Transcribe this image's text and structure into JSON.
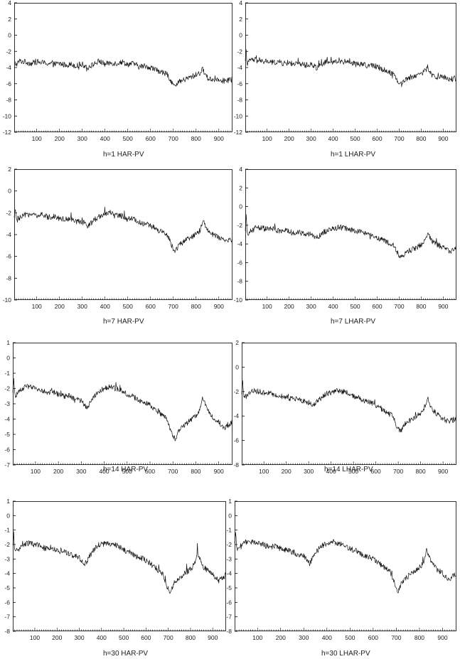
{
  "chart_data": [
    {
      "type": "line",
      "title": "h=1 HAR-PV",
      "xlim": [
        1,
        960
      ],
      "ylim": [
        -12,
        4
      ],
      "yticks": [
        4,
        2,
        0,
        -2,
        -4,
        -6,
        -8,
        -10,
        -12
      ],
      "xticks": [
        100,
        200,
        300,
        400,
        500,
        600,
        700,
        800,
        900
      ],
      "series": [
        {
          "x": [
            1,
            10,
            25,
            50,
            75,
            100,
            125,
            150,
            175,
            200,
            225,
            250,
            275,
            300,
            325,
            350,
            375,
            400,
            425,
            450,
            475,
            500,
            525,
            550,
            575,
            600,
            625,
            650,
            675,
            700,
            710,
            725,
            750,
            775,
            800,
            820,
            830,
            840,
            850,
            875,
            900,
            925,
            960
          ],
          "y": [
            -3.4,
            -3.6,
            -3.2,
            -3.3,
            -3.5,
            -3.3,
            -3.4,
            -3.5,
            -3.6,
            -3.5,
            -3.7,
            -3.6,
            -3.8,
            -3.6,
            -4.0,
            -3.6,
            -3.2,
            -3.6,
            -3.4,
            -3.5,
            -3.3,
            -3.6,
            -3.5,
            -3.9,
            -3.8,
            -4.0,
            -4.3,
            -4.6,
            -4.9,
            -6.1,
            -6.4,
            -5.8,
            -5.5,
            -5.2,
            -4.9,
            -4.6,
            -4.2,
            -4.8,
            -5.3,
            -5.5,
            -5.4,
            -5.7,
            -5.4
          ]
        }
      ]
    },
    {
      "type": "line",
      "title": "h=1 LHAR-PV",
      "xlim": [
        1,
        960
      ],
      "ylim": [
        -12,
        4
      ],
      "yticks": [
        4,
        2,
        0,
        -2,
        -4,
        -6,
        -8,
        -10,
        -12
      ],
      "xticks": [
        100,
        200,
        300,
        400,
        500,
        600,
        700,
        800,
        900
      ],
      "series": [
        {
          "x": [
            1,
            5,
            10,
            25,
            50,
            75,
            100,
            125,
            150,
            175,
            200,
            225,
            250,
            275,
            300,
            325,
            350,
            375,
            400,
            425,
            450,
            475,
            500,
            525,
            550,
            575,
            600,
            625,
            650,
            675,
            700,
            710,
            725,
            750,
            775,
            800,
            820,
            830,
            840,
            850,
            875,
            900,
            925,
            960
          ],
          "y": [
            -3.2,
            -2.0,
            -3.6,
            -3.0,
            -3.1,
            -3.3,
            -3.2,
            -3.4,
            -3.3,
            -3.5,
            -3.4,
            -3.6,
            -3.5,
            -3.7,
            -3.6,
            -4.0,
            -3.5,
            -3.3,
            -3.4,
            -3.1,
            -3.3,
            -3.2,
            -3.6,
            -3.5,
            -3.8,
            -3.7,
            -3.9,
            -4.2,
            -4.5,
            -4.8,
            -5.9,
            -6.1,
            -5.5,
            -5.2,
            -5.0,
            -4.7,
            -4.4,
            -3.9,
            -4.6,
            -5.0,
            -5.2,
            -5.1,
            -5.5,
            -5.3
          ]
        }
      ]
    },
    {
      "type": "line",
      "title": "h=7 HAR-PV",
      "xlim": [
        1,
        960
      ],
      "ylim": [
        -10,
        2
      ],
      "yticks": [
        2,
        0,
        -2,
        -4,
        -6,
        -8,
        -10
      ],
      "xticks": [
        100,
        200,
        300,
        400,
        500,
        600,
        700,
        800,
        900
      ],
      "series": [
        {
          "x": [
            1,
            5,
            10,
            25,
            50,
            75,
            100,
            125,
            150,
            175,
            200,
            225,
            250,
            275,
            300,
            325,
            350,
            375,
            400,
            425,
            450,
            475,
            500,
            525,
            550,
            575,
            600,
            625,
            650,
            675,
            700,
            710,
            725,
            750,
            775,
            800,
            820,
            830,
            840,
            850,
            875,
            900,
            925,
            960
          ],
          "y": [
            -2.6,
            -1.5,
            -2.7,
            -2.5,
            -2.2,
            -2.1,
            -2.3,
            -2.2,
            -2.4,
            -2.3,
            -2.5,
            -2.6,
            -2.5,
            -2.8,
            -2.9,
            -3.2,
            -2.7,
            -2.3,
            -2.1,
            -2.0,
            -2.2,
            -2.3,
            -2.6,
            -2.5,
            -2.9,
            -3.0,
            -3.2,
            -3.5,
            -3.8,
            -4.1,
            -5.3,
            -5.5,
            -4.9,
            -4.6,
            -4.3,
            -4.0,
            -3.5,
            -2.7,
            -3.2,
            -3.6,
            -4.0,
            -4.3,
            -4.6,
            -4.4
          ]
        }
      ]
    },
    {
      "type": "line",
      "title": "h=7 LHAR-PV",
      "xlim": [
        1,
        960
      ],
      "ylim": [
        -10,
        4
      ],
      "yticks": [
        4,
        2,
        0,
        -2,
        -4,
        -6,
        -8,
        -10
      ],
      "xticks": [
        100,
        200,
        300,
        400,
        500,
        600,
        700,
        800,
        900
      ],
      "series": [
        {
          "x": [
            1,
            5,
            10,
            25,
            50,
            75,
            100,
            125,
            150,
            175,
            200,
            225,
            250,
            275,
            300,
            325,
            350,
            375,
            400,
            425,
            450,
            475,
            500,
            525,
            550,
            575,
            600,
            625,
            650,
            675,
            700,
            710,
            725,
            750,
            775,
            800,
            820,
            830,
            840,
            850,
            875,
            900,
            925,
            960
          ],
          "y": [
            -2.8,
            -1.0,
            -3.0,
            -2.7,
            -2.2,
            -2.3,
            -2.4,
            -2.4,
            -2.6,
            -2.5,
            -2.7,
            -2.8,
            -2.8,
            -3.0,
            -3.0,
            -3.3,
            -2.9,
            -2.5,
            -2.4,
            -2.2,
            -2.3,
            -2.4,
            -2.7,
            -2.6,
            -3.0,
            -3.1,
            -3.3,
            -3.6,
            -3.9,
            -4.2,
            -5.3,
            -5.5,
            -5.0,
            -4.7,
            -4.4,
            -4.1,
            -3.6,
            -2.8,
            -3.3,
            -3.7,
            -4.1,
            -4.4,
            -4.8,
            -4.5
          ]
        }
      ]
    },
    {
      "type": "line",
      "title": "h=14 HAR-PV",
      "xlim": [
        1,
        960
      ],
      "ylim": [
        -7,
        1
      ],
      "yticks": [
        1,
        0,
        -1,
        -2,
        -3,
        -4,
        -5,
        -6,
        -7
      ],
      "xticks": [
        100,
        200,
        300,
        400,
        500,
        600,
        700,
        800,
        900
      ],
      "series": [
        {
          "x": [
            1,
            5,
            10,
            25,
            50,
            75,
            100,
            125,
            150,
            175,
            200,
            225,
            250,
            275,
            300,
            325,
            350,
            375,
            400,
            425,
            450,
            475,
            500,
            525,
            550,
            575,
            600,
            625,
            650,
            675,
            700,
            710,
            725,
            750,
            775,
            800,
            820,
            830,
            840,
            850,
            875,
            900,
            925,
            960
          ],
          "y": [
            -2.4,
            -1.3,
            -2.5,
            -2.3,
            -1.9,
            -1.9,
            -2.0,
            -2.1,
            -2.3,
            -2.2,
            -2.4,
            -2.5,
            -2.5,
            -2.7,
            -2.8,
            -3.3,
            -2.6,
            -2.2,
            -2.0,
            -1.9,
            -2.0,
            -2.1,
            -2.4,
            -2.5,
            -2.8,
            -2.9,
            -3.1,
            -3.4,
            -3.7,
            -4.0,
            -5.2,
            -5.4,
            -4.8,
            -4.4,
            -4.1,
            -3.8,
            -3.3,
            -2.5,
            -3.0,
            -3.4,
            -3.9,
            -4.2,
            -4.6,
            -4.2
          ]
        }
      ]
    },
    {
      "type": "line",
      "title": "h=14 LHAR-PV",
      "xlim": [
        1,
        960
      ],
      "ylim": [
        -8,
        2
      ],
      "yticks": [
        2,
        0,
        -2,
        -4,
        -6,
        -8
      ],
      "xticks": [
        100,
        200,
        300,
        400,
        500,
        600,
        700,
        800,
        900
      ],
      "series": [
        {
          "x": [
            1,
            5,
            10,
            25,
            50,
            75,
            100,
            125,
            150,
            175,
            200,
            225,
            250,
            275,
            300,
            325,
            350,
            375,
            400,
            425,
            450,
            475,
            500,
            525,
            550,
            575,
            600,
            625,
            650,
            675,
            700,
            710,
            725,
            750,
            775,
            800,
            820,
            830,
            840,
            850,
            875,
            900,
            925,
            960
          ],
          "y": [
            -2.4,
            -0.9,
            -2.6,
            -2.3,
            -1.9,
            -2.0,
            -2.1,
            -2.1,
            -2.3,
            -2.3,
            -2.5,
            -2.6,
            -2.6,
            -2.8,
            -2.9,
            -3.1,
            -2.6,
            -2.2,
            -2.1,
            -1.9,
            -2.0,
            -2.1,
            -2.4,
            -2.5,
            -2.8,
            -2.9,
            -3.1,
            -3.4,
            -3.7,
            -4.0,
            -5.1,
            -5.3,
            -4.7,
            -4.4,
            -4.1,
            -3.8,
            -3.3,
            -2.5,
            -3.0,
            -3.4,
            -3.9,
            -4.2,
            -4.5,
            -4.2
          ]
        }
      ]
    },
    {
      "type": "line",
      "title": "h=30 HAR-PV",
      "xlim": [
        1,
        960
      ],
      "ylim": [
        -8,
        1
      ],
      "yticks": [
        1,
        0,
        -1,
        -2,
        -3,
        -4,
        -5,
        -6,
        -7,
        -8
      ],
      "xticks": [
        100,
        200,
        300,
        400,
        500,
        600,
        700,
        800,
        900
      ],
      "series": [
        {
          "x": [
            1,
            5,
            10,
            25,
            50,
            75,
            100,
            125,
            150,
            175,
            200,
            225,
            250,
            275,
            300,
            325,
            350,
            375,
            400,
            425,
            450,
            475,
            500,
            525,
            550,
            575,
            600,
            625,
            650,
            675,
            700,
            710,
            725,
            750,
            775,
            800,
            820,
            830,
            840,
            850,
            875,
            900,
            925,
            960
          ],
          "y": [
            -2.2,
            -1.2,
            -2.5,
            -2.4,
            -2.0,
            -1.9,
            -2.0,
            -2.1,
            -2.3,
            -2.2,
            -2.4,
            -2.5,
            -2.6,
            -2.8,
            -2.9,
            -3.4,
            -2.7,
            -2.2,
            -2.0,
            -1.9,
            -2.0,
            -2.1,
            -2.4,
            -2.5,
            -2.8,
            -2.9,
            -3.1,
            -3.4,
            -3.7,
            -4.0,
            -5.1,
            -5.3,
            -4.7,
            -4.3,
            -4.0,
            -3.7,
            -3.3,
            -2.4,
            -2.9,
            -3.3,
            -3.8,
            -4.1,
            -4.5,
            -4.1
          ]
        }
      ]
    },
    {
      "type": "line",
      "title": "h=30 LHAR-PV",
      "xlim": [
        1,
        960
      ],
      "ylim": [
        -8,
        1
      ],
      "yticks": [
        1,
        0,
        -1,
        -2,
        -3,
        -4,
        -5,
        -6,
        -7,
        -8
      ],
      "xticks": [
        100,
        200,
        300,
        400,
        500,
        600,
        700,
        800,
        900
      ],
      "series": [
        {
          "x": [
            1,
            5,
            10,
            25,
            50,
            75,
            100,
            125,
            150,
            175,
            200,
            225,
            250,
            275,
            300,
            325,
            350,
            375,
            400,
            425,
            450,
            475,
            500,
            525,
            550,
            575,
            600,
            625,
            650,
            675,
            700,
            710,
            725,
            750,
            775,
            800,
            820,
            830,
            840,
            850,
            875,
            900,
            925,
            960
          ],
          "y": [
            -2.1,
            -1.1,
            -2.4,
            -2.2,
            -1.8,
            -1.8,
            -1.9,
            -2.0,
            -2.2,
            -2.1,
            -2.3,
            -2.4,
            -2.5,
            -2.7,
            -2.8,
            -3.3,
            -2.6,
            -2.1,
            -1.9,
            -1.8,
            -1.9,
            -2.0,
            -2.3,
            -2.4,
            -2.7,
            -2.8,
            -3.0,
            -3.3,
            -3.6,
            -3.9,
            -5.0,
            -5.2,
            -4.6,
            -4.2,
            -3.9,
            -3.6,
            -3.2,
            -2.3,
            -2.8,
            -3.2,
            -3.7,
            -4.0,
            -4.4,
            -4.0
          ]
        }
      ]
    }
  ]
}
